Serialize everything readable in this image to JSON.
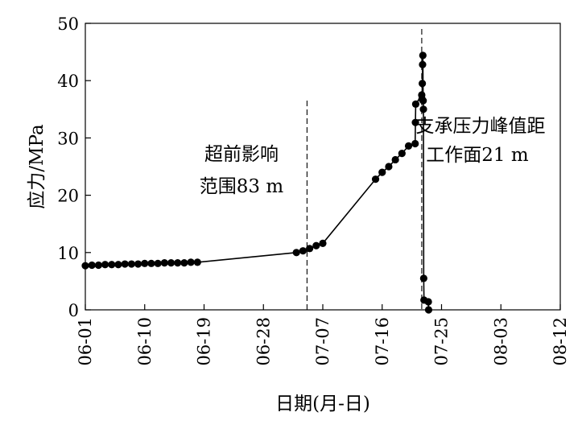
{
  "chart_data": {
    "type": "line",
    "xlabel": "日期(月-日)",
    "ylabel": "应力/MPa",
    "x_ticks": [
      "06-01",
      "06-10",
      "06-19",
      "06-28",
      "07-07",
      "07-16",
      "07-25",
      "08-03",
      "08-12"
    ],
    "xlim": [
      "06-01",
      "08-12"
    ],
    "y_ticks": [
      "0",
      "10",
      "20",
      "30",
      "40",
      "50"
    ],
    "ylim": [
      0,
      50
    ],
    "grid": false,
    "series": [
      {
        "x": [
          "06-01",
          "06-02",
          "06-03",
          "06-04",
          "06-05",
          "06-06",
          "06-07",
          "06-08",
          "06-09",
          "06-10",
          "06-11",
          "06-12",
          "06-13",
          "06-14",
          "06-15",
          "06-16",
          "06-17",
          "06-18",
          "07-03",
          "07-04",
          "07-05",
          "07-06",
          "07-07",
          "07-15",
          "07-16",
          "07-17",
          "07-18",
          "07-19",
          "07-20",
          "07-21",
          "07-21",
          "07-21",
          "07-22",
          "07-22",
          "07-22",
          "07-22",
          "07-22",
          "07-22",
          "07-22",
          "07-22",
          "07-22",
          "07-23",
          "07-23"
        ],
        "y": [
          7.7,
          7.8,
          7.8,
          7.9,
          7.9,
          7.9,
          8.0,
          8.0,
          8.0,
          8.1,
          8.1,
          8.1,
          8.2,
          8.2,
          8.2,
          8.2,
          8.3,
          8.3,
          10.0,
          10.3,
          10.7,
          11.2,
          11.6,
          22.8,
          24.0,
          25.0,
          26.2,
          27.3,
          28.6,
          29.0,
          32.7,
          35.9,
          37.5,
          36.8,
          39.5,
          42.8,
          44.4,
          36.5,
          35.0,
          5.5,
          1.7,
          1.4,
          0.0
        ]
      }
    ],
    "vlines": [
      "07-04",
      "07-22"
    ],
    "annotations": [
      {
        "lines": [
          "超前影响",
          "范围83 m"
        ]
      },
      {
        "lines": [
          "支承压力峰值距",
          "工作面21 m"
        ]
      }
    ]
  }
}
